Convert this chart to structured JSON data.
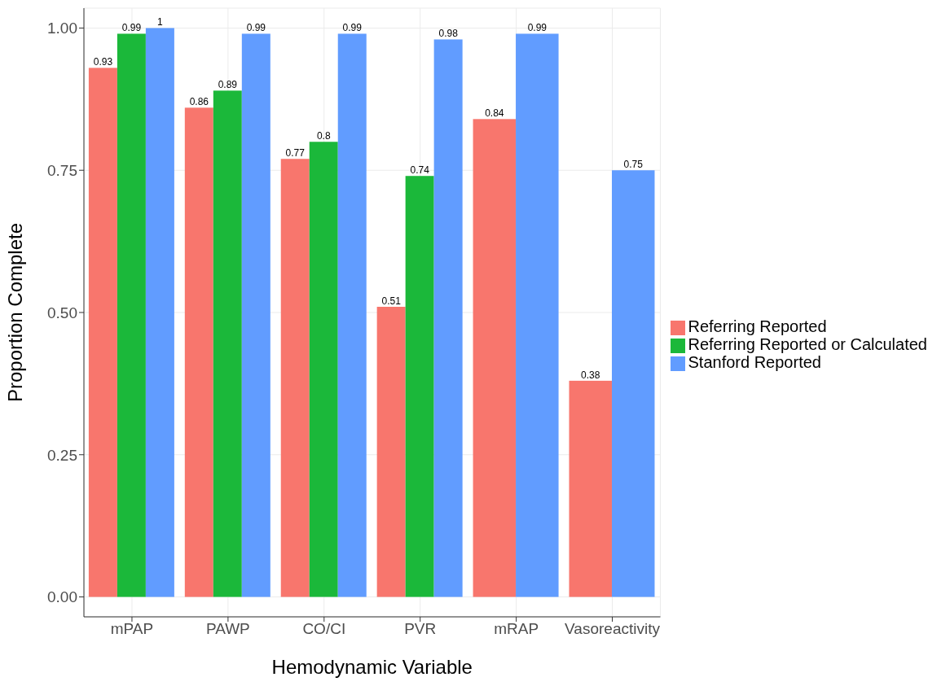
{
  "chart_data": {
    "type": "bar",
    "xlabel": "Hemodynamic Variable",
    "ylabel": "Proportion Complete",
    "categories": [
      "mPAP",
      "PAWP",
      "CO/CI",
      "PVR",
      "mRAP",
      "Vasoreactivity"
    ],
    "series": [
      {
        "name": "Referring Reported",
        "color": "#f8766d",
        "values": [
          0.93,
          0.86,
          0.77,
          0.51,
          0.84,
          0.38
        ]
      },
      {
        "name": "Referring Reported or Calculated",
        "color": "#1bb83a",
        "values": [
          0.99,
          0.89,
          0.8,
          0.74,
          null,
          null
        ]
      },
      {
        "name": "Stanford Reported",
        "color": "#619cff",
        "values": [
          1,
          0.99,
          0.99,
          0.98,
          0.99,
          0.75
        ]
      }
    ],
    "ylim": [
      -0.035,
      1.035
    ],
    "yticks": [
      {
        "value": 0,
        "label": "0.00"
      },
      {
        "value": 0.25,
        "label": "0.25"
      },
      {
        "value": 0.5,
        "label": "0.50"
      },
      {
        "value": 0.75,
        "label": "0.75"
      },
      {
        "value": 1,
        "label": "1.00"
      }
    ],
    "grid": true,
    "legend": "right",
    "data_labels": true
  }
}
